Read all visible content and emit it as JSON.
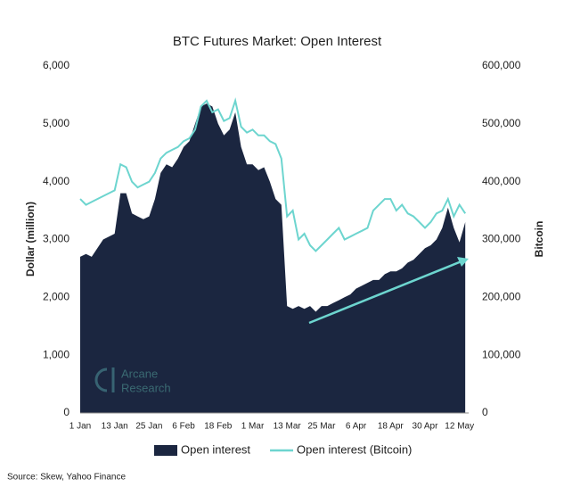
{
  "chart_data": {
    "type": "combo",
    "title": "BTC Futures Market: Open Interest",
    "y_label": "Dollar (million)",
    "y2_label": "Bitcoin",
    "source": "Source: Skew, Yahoo Finance",
    "watermark": [
      "Arcane",
      "Research"
    ],
    "categories": [
      "1 Jan",
      null,
      null,
      null,
      null,
      null,
      "13 Jan",
      null,
      null,
      null,
      null,
      null,
      "25 Jan",
      null,
      null,
      null,
      null,
      null,
      "6 Feb",
      null,
      null,
      null,
      null,
      null,
      "18 Feb",
      null,
      null,
      null,
      null,
      null,
      "1 Mar",
      null,
      null,
      null,
      null,
      null,
      "13 Mar",
      null,
      null,
      null,
      null,
      null,
      "25 Mar",
      null,
      null,
      null,
      null,
      null,
      "6 Apr",
      null,
      null,
      null,
      null,
      null,
      "18 Apr",
      null,
      null,
      null,
      null,
      null,
      "30 Apr",
      null,
      null,
      null,
      null,
      null,
      "12 May",
      null
    ],
    "series": [
      {
        "name": "Open interest",
        "type": "area",
        "color": "#1b2640",
        "values": [
          2700,
          2750,
          2700,
          2850,
          3000,
          3050,
          3100,
          3800,
          3800,
          3450,
          3400,
          3350,
          3400,
          3700,
          4150,
          4300,
          4250,
          4400,
          4600,
          4700,
          5000,
          5300,
          5350,
          5300,
          5000,
          4800,
          4900,
          5200,
          4600,
          4300,
          4300,
          4200,
          4250,
          4000,
          3700,
          3600,
          1850,
          1800,
          1850,
          1800,
          1850,
          1750,
          1850,
          1850,
          1900,
          1950,
          2000,
          2050,
          2150,
          2200,
          2250,
          2300,
          2300,
          2400,
          2450,
          2450,
          2500,
          2600,
          2650,
          2750,
          2850,
          2900,
          3000,
          3200,
          3550,
          3200,
          2950,
          3300
        ]
      },
      {
        "name": "Open interest (Bitcoin)",
        "type": "line",
        "axis": "y2",
        "color": "#6dd5cf",
        "values": [
          370000,
          360000,
          365000,
          370000,
          375000,
          380000,
          385000,
          430000,
          425000,
          400000,
          390000,
          395000,
          400000,
          415000,
          440000,
          450000,
          455000,
          460000,
          470000,
          475000,
          490000,
          530000,
          540000,
          520000,
          525000,
          505000,
          510000,
          540000,
          495000,
          485000,
          490000,
          480000,
          480000,
          470000,
          465000,
          440000,
          340000,
          350000,
          300000,
          310000,
          290000,
          280000,
          290000,
          300000,
          310000,
          320000,
          300000,
          305000,
          310000,
          315000,
          320000,
          350000,
          360000,
          370000,
          370000,
          350000,
          360000,
          345000,
          340000,
          330000,
          320000,
          330000,
          345000,
          350000,
          370000,
          340000,
          360000,
          345000
        ]
      }
    ],
    "ylim": [
      0,
      6000
    ],
    "yticks": [
      0,
      {
        "value": 1000,
        "label": "1,000"
      },
      {
        "value": 2000,
        "label": "2,000"
      },
      {
        "value": 3000,
        "label": "3,000"
      },
      {
        "value": 4000,
        "label": "4,000"
      },
      {
        "value": 5000,
        "label": "5,000"
      },
      {
        "value": 6000,
        "label": "6,000"
      }
    ],
    "y2lim": [
      0,
      600000
    ],
    "y2ticks": [
      0,
      {
        "value": 100000,
        "label": "100,000"
      },
      {
        "value": 200000,
        "label": "200,000"
      },
      {
        "value": 300000,
        "label": "300,000"
      },
      {
        "value": 400000,
        "label": "400,000"
      },
      {
        "value": 500000,
        "label": "500,000"
      },
      {
        "value": 600000,
        "label": "600,000"
      }
    ],
    "legend": "bottom"
  }
}
